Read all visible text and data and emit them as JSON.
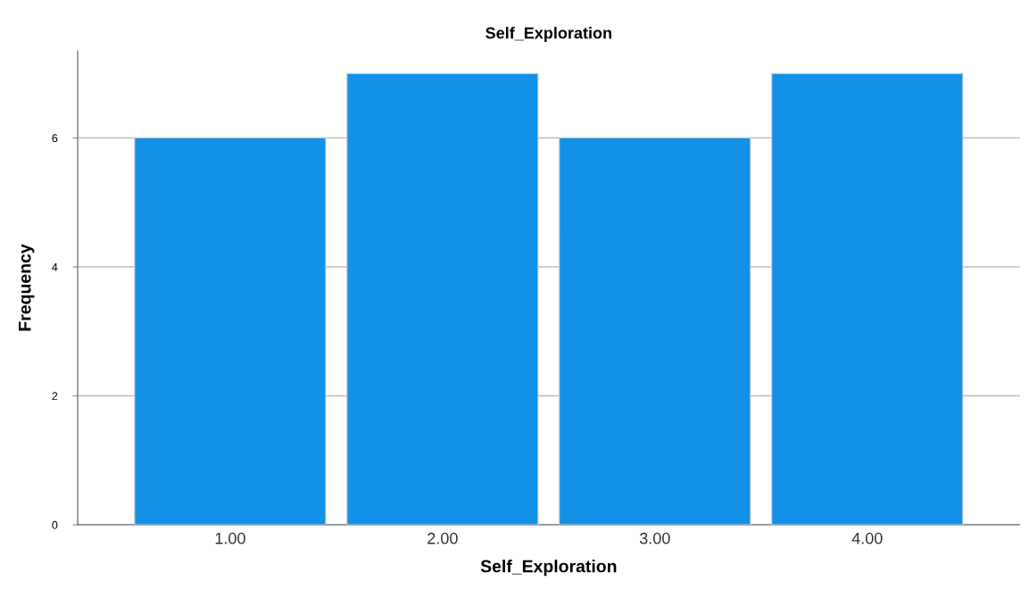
{
  "chart_data": {
    "type": "bar",
    "title": "Self_Exploration",
    "xlabel": "Self_Exploration",
    "ylabel": "Frequency",
    "categories": [
      "1.00",
      "2.00",
      "3.00",
      "4.00"
    ],
    "values": [
      6,
      7,
      6,
      7
    ],
    "color": "#1391e6",
    "ylim": [
      0,
      7.35
    ],
    "yticks": [
      0,
      2,
      4,
      6
    ],
    "grid": "y"
  }
}
